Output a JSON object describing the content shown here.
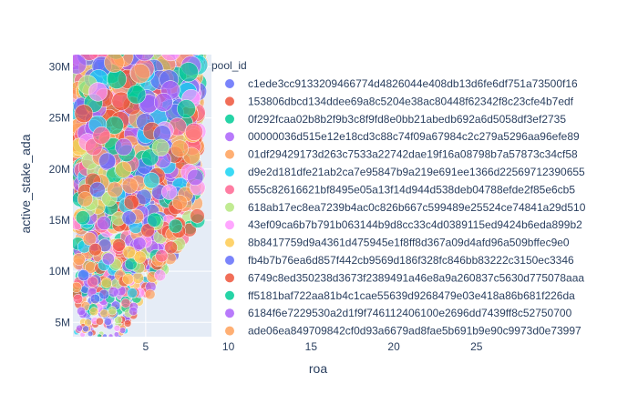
{
  "chart_data": {
    "type": "scatter",
    "xlabel": "roa",
    "ylabel": "active_stake_ada",
    "x_ticks": [
      "5",
      "10",
      "15",
      "20",
      "25"
    ],
    "y_ticks": [
      "5M",
      "10M",
      "15M",
      "20M",
      "25M",
      "30M"
    ],
    "xlim": [
      0.6,
      30.3
    ],
    "ylim": [
      3600000,
      31200000
    ],
    "grid": true,
    "legend_position": "right",
    "legend_title": "pool_id",
    "bubble_size_by": "active_stake_ada",
    "series": [
      {
        "name": "c1ede3cc9133209466774d4826044e408db13d6fe6df751a73500f16",
        "color": "#636efa"
      },
      {
        "name": "153806dbcd134ddee69a8c5204e38ac80448f62342f8c23cfe4b7edf",
        "color": "#EF553B"
      },
      {
        "name": "0f292fcaa02b8b2f9b3c8f9fd8e0bb21abedb692a6d5058df3ef2735",
        "color": "#00cc96"
      },
      {
        "name": "00000036d515e12e18cd3c88c74f09a67984c2c279a5296aa96efe89",
        "color": "#ab63fa"
      },
      {
        "name": "01df29429173d263c7533a22742dae19f16a08798b7a57873c34cf58",
        "color": "#FFA15A"
      },
      {
        "name": "d9e2d181dfe21ab2ca7e95847b9a219e691ee1366d22569712390655",
        "color": "#19d3f3"
      },
      {
        "name": "655c82616621bf8495e05a13f14d944d538deb04788efde2f85e6cb5",
        "color": "#FF6692"
      },
      {
        "name": "618ab17ec8ea7239b4ac0c826b667c599489e25524ce74841a29d510",
        "color": "#B6E880"
      },
      {
        "name": "43ef09ca6b7b791b063144b9d8cc33c4d0389115ed9424b6eda899b2",
        "color": "#FF97FF"
      },
      {
        "name": "8b8417759d9a4361d475945e1f8ff8d367a09d4afd96a509bffec9e0",
        "color": "#FECB52"
      },
      {
        "name": "fb4b7b76ea6d857f442cb9569d186f328fc846bb83222c3150ec3346",
        "color": "#636efa"
      },
      {
        "name": "6749c8ed350238d3673f2389491a46e8a9a260837c5630d775078aaa",
        "color": "#EF553B"
      },
      {
        "name": "ff5181baf722aa81b4c1cae55639d9268479e03e418a86b681f226da",
        "color": "#00cc96"
      },
      {
        "name": "6184f6e7229530a2d1f9f746112406100e2696dd7439ff8c52750700",
        "color": "#ab63fa"
      },
      {
        "name": "ade06ea849709842cf0d93a6679ad8fae5b691b9e90c9973d0e73997",
        "color": "#FFA15A"
      }
    ]
  }
}
